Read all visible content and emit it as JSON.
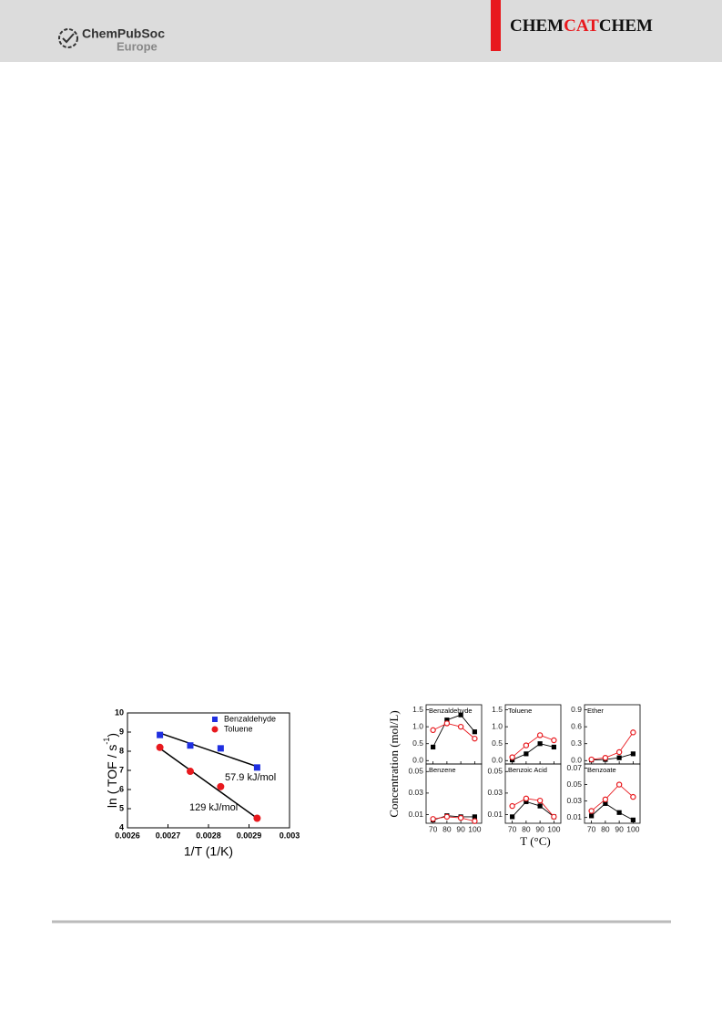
{
  "header": {
    "publisher": "ChemPubSoc",
    "publisher_sub": "Europe",
    "journal": [
      "CHEM",
      "CAT",
      "CHEM"
    ]
  },
  "chart_data": [
    {
      "type": "scatter",
      "xlabel": "1/T (1/K)",
      "ylabel": [
        "ln ( TOF / s",
        "-1",
        ")"
      ],
      "xlim": [
        0.0026,
        0.003
      ],
      "ylim": [
        4,
        10
      ],
      "xticks": [
        0.0026,
        0.0027,
        0.0028,
        0.0029,
        0.003
      ],
      "yticks": [
        4,
        5,
        6,
        7,
        8,
        9,
        10
      ],
      "legend": "upper right",
      "series": [
        {
          "name": "Benzaldehyde",
          "color": "#1f2fe0",
          "marker": "square",
          "x": [
            0.00268,
            0.002755,
            0.00283,
            0.00292
          ],
          "values": [
            8.85,
            8.3,
            8.15,
            7.15
          ],
          "fit": {
            "x": [
              0.00268,
              0.00292
            ],
            "values": [
              8.95,
              7.2
            ]
          }
        },
        {
          "name": "Toluene",
          "color": "#e8191e",
          "marker": "circle",
          "x": [
            0.00268,
            0.002755,
            0.00283,
            0.00292
          ],
          "values": [
            8.2,
            6.95,
            6.15,
            4.5
          ],
          "fit": {
            "x": [
              0.00268,
              0.00292
            ],
            "values": [
              8.15,
              4.5
            ]
          }
        }
      ],
      "annotations": [
        "57.9 kJ/mol",
        "129 kJ/mol"
      ]
    },
    {
      "type": "panels",
      "ylabel": "Concentration (mol/L)",
      "xlabel": "T (°C)",
      "x": [
        70,
        80,
        90,
        100
      ],
      "xlim": [
        65,
        105
      ],
      "xticks": [
        70,
        80,
        90,
        100
      ],
      "panels": [
        {
          "title": "Benzaldehyde",
          "ylim": [
            -0.1,
            1.65
          ],
          "yticks": [
            {
              "value": 0,
              "label": "0.0"
            },
            0.5,
            {
              "value": 1,
              "label": "1.0"
            },
            1.5
          ],
          "series": [
            {
              "color": "#000000",
              "marker": "square",
              "values": [
                0.4,
                1.2,
                1.35,
                0.85
              ]
            },
            {
              "color": "#e8191e",
              "marker": "open-circle",
              "values": [
                0.9,
                1.1,
                1.0,
                0.65
              ]
            }
          ]
        },
        {
          "title": "Toluene",
          "ylim": [
            -0.1,
            1.65
          ],
          "yticks": [
            {
              "value": 0,
              "label": "0.0"
            },
            0.5,
            {
              "value": 1,
              "label": "1.0"
            },
            1.5
          ],
          "series": [
            {
              "color": "#000000",
              "marker": "square",
              "values": [
                0.02,
                0.2,
                0.5,
                0.4
              ]
            },
            {
              "color": "#e8191e",
              "marker": "open-circle",
              "values": [
                0.1,
                0.45,
                0.75,
                0.6
              ]
            }
          ]
        },
        {
          "title": "Ether",
          "ylim": [
            -0.06,
            0.99
          ],
          "yticks": [
            {
              "value": 0,
              "label": "0.0"
            },
            0.3,
            0.6,
            0.9
          ],
          "series": [
            {
              "color": "#000000",
              "marker": "square",
              "values": [
                0.01,
                0.02,
                0.05,
                0.12
              ]
            },
            {
              "color": "#e8191e",
              "marker": "open-circle",
              "values": [
                0.02,
                0.05,
                0.15,
                0.5
              ]
            }
          ]
        },
        {
          "title": "Benzene",
          "ylim": [
            0.002,
            0.057
          ],
          "yticks": [
            0.01,
            0.03,
            0.05
          ],
          "series": [
            {
              "color": "#000000",
              "marker": "square",
              "values": [
                0.005,
                0.009,
                0.008,
                0.008
              ]
            },
            {
              "color": "#e8191e",
              "marker": "open-circle",
              "values": [
                0.006,
                0.008,
                0.007,
                0.004
              ]
            }
          ]
        },
        {
          "title": "Benzoic Acid",
          "ylim": [
            0.002,
            0.057
          ],
          "yticks": [
            0.01,
            0.03,
            0.05
          ],
          "series": [
            {
              "color": "#000000",
              "marker": "square",
              "values": [
                0.008,
                0.022,
                0.018,
                0.008
              ]
            },
            {
              "color": "#e8191e",
              "marker": "open-circle",
              "values": [
                0.018,
                0.025,
                0.023,
                0.008
              ]
            }
          ]
        },
        {
          "title": "Benzoate",
          "ylim": [
            0.003,
            0.075
          ],
          "yticks": [
            0.01,
            0.03,
            0.05,
            0.07
          ],
          "series": [
            {
              "color": "#000000",
              "marker": "square",
              "values": [
                0.012,
                0.027,
                0.016,
                0.007
              ]
            },
            {
              "color": "#e8191e",
              "marker": "open-circle",
              "values": [
                0.018,
                0.032,
                0.05,
                0.035
              ]
            }
          ]
        }
      ]
    }
  ]
}
